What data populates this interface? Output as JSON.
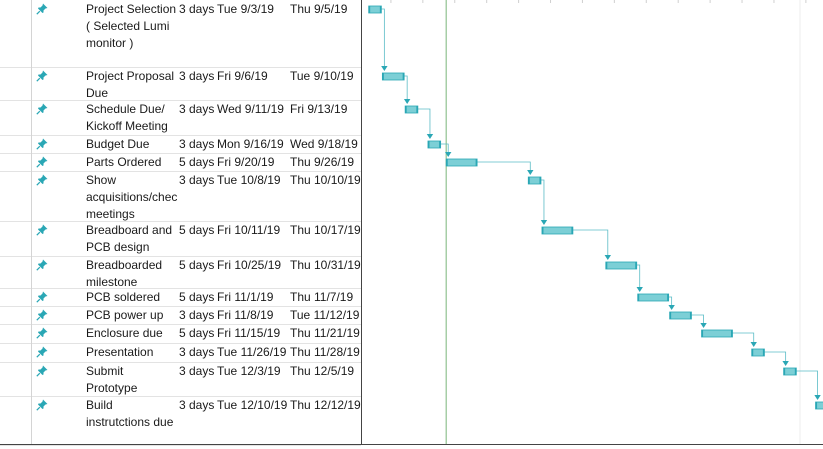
{
  "colors": {
    "bar_fill": "#7ccfd6",
    "bar_edge": "#2aa7b5",
    "connector": "#5bbcc6",
    "pin_icon": "#2aa7b5",
    "status_date_line": "#8fc28f"
  },
  "task_icon": "pin-icon",
  "tasks": [
    {
      "name": "Project Selection ( Selected Lumi monitor )",
      "duration": "3 days",
      "start": "Tue 9/3/19",
      "finish": "Thu 9/5/19",
      "start_date": "2019-09-03",
      "finish_date": "2019-09-05"
    },
    {
      "name": "Project Proposal Due",
      "duration": "3 days",
      "start": "Fri 9/6/19",
      "finish": "Tue 9/10/19",
      "start_date": "2019-09-06",
      "finish_date": "2019-09-10"
    },
    {
      "name": "Schedule Due/ Kickoff Meeting",
      "duration": "3 days",
      "start": "Wed 9/11/19",
      "finish": "Fri 9/13/19",
      "start_date": "2019-09-11",
      "finish_date": "2019-09-13"
    },
    {
      "name": "Budget Due",
      "duration": "3 days",
      "start": "Mon 9/16/19",
      "finish": "Wed 9/18/19",
      "start_date": "2019-09-16",
      "finish_date": "2019-09-18"
    },
    {
      "name": "Parts Ordered",
      "duration": "5 days",
      "start": "Fri 9/20/19",
      "finish": "Thu 9/26/19",
      "start_date": "2019-09-20",
      "finish_date": "2019-09-26"
    },
    {
      "name": "Show acquisitions/checks meetings",
      "duration": "3 days",
      "start": "Tue 10/8/19",
      "finish": "Thu 10/10/19",
      "start_date": "2019-10-08",
      "finish_date": "2019-10-10"
    },
    {
      "name": "Breadboard and PCB design",
      "duration": "5 days",
      "start": "Fri 10/11/19",
      "finish": "Thu 10/17/19",
      "start_date": "2019-10-11",
      "finish_date": "2019-10-17"
    },
    {
      "name": "Breadboarded milestone",
      "duration": "5 days",
      "start": "Fri 10/25/19",
      "finish": "Thu 10/31/19",
      "start_date": "2019-10-25",
      "finish_date": "2019-10-31"
    },
    {
      "name": "PCB soldered",
      "duration": "5 days",
      "start": "Fri 11/1/19",
      "finish": "Thu 11/7/19",
      "start_date": "2019-11-01",
      "finish_date": "2019-11-07"
    },
    {
      "name": "PCB power up",
      "duration": "3 days",
      "start": "Fri 11/8/19",
      "finish": "Tue 11/12/19",
      "start_date": "2019-11-08",
      "finish_date": "2019-11-12"
    },
    {
      "name": "Enclosure due",
      "duration": "5 days",
      "start": "Fri 11/15/19",
      "finish": "Thu 11/21/19",
      "start_date": "2019-11-15",
      "finish_date": "2019-11-21"
    },
    {
      "name": "Presentation",
      "duration": "3 days",
      "start": "Tue 11/26/19",
      "finish": "Thu 11/28/19",
      "start_date": "2019-11-26",
      "finish_date": "2019-11-28"
    },
    {
      "name": "Submit Prototype",
      "duration": "3 days",
      "start": "Tue 12/3/19",
      "finish": "Thu 12/5/19",
      "start_date": "2019-12-03",
      "finish_date": "2019-12-05"
    },
    {
      "name": "Build instrutctions due",
      "duration": "3 days",
      "start": "Tue 12/10/19",
      "finish": "Thu 12/12/19",
      "start_date": "2019-12-10",
      "finish_date": "2019-12-12"
    }
  ]
}
